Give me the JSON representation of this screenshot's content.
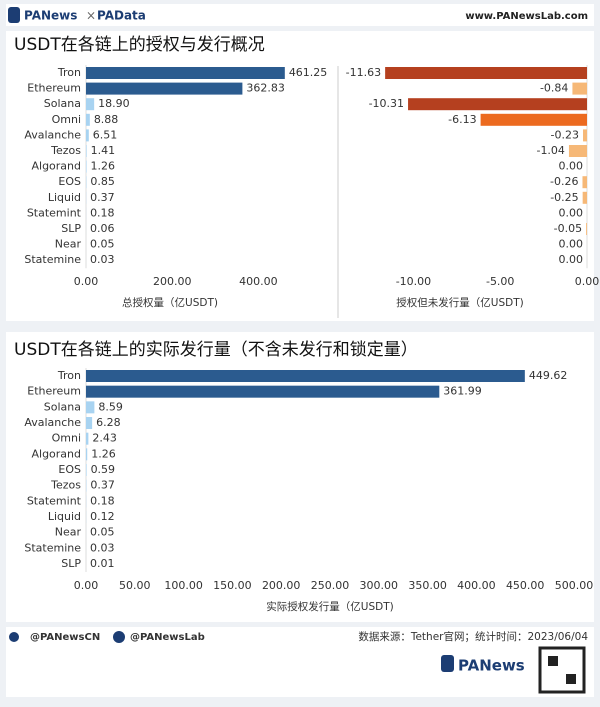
{
  "header": {
    "brand": "PANews",
    "brand2": "PAData",
    "site": "www.PANewsLab.com"
  },
  "chart_data": [
    {
      "type": "hbar",
      "title": "USDT在各链上的授权与发行概况",
      "xlabel": "总授权量（亿USDT)",
      "categories": [
        "Tron",
        "Ethereum",
        "Solana",
        "Omni",
        "Avalanche",
        "Tezos",
        "Algorand",
        "EOS",
        "Liquid",
        "Statemint",
        "SLP",
        "Near",
        "Statemine"
      ],
      "values": [
        461.25,
        362.83,
        18.9,
        8.88,
        6.51,
        1.41,
        1.26,
        0.85,
        0.37,
        0.18,
        0.06,
        0.05,
        0.03
      ],
      "value_labels": [
        "461.25",
        "362.83",
        "18.90",
        "8.88",
        "6.51",
        "1.41",
        "1.26",
        "0.85",
        "0.37",
        "0.18",
        "0.06",
        "0.05",
        "0.03"
      ],
      "colors": [
        "#2b5b8f",
        "#2b5b8f",
        "#a8d3f1",
        "#a8d3f1",
        "#a8d3f1",
        "#a8d3f1",
        "#a8d3f1",
        "#a8d3f1",
        "#a8d3f1",
        "#a8d3f1",
        "#a8d3f1",
        "#a8d3f1",
        "#a8d3f1"
      ],
      "xlim": [
        0,
        580
      ],
      "xticks": [
        {
          "value": 0,
          "label": "0.00"
        },
        {
          "value": 200,
          "label": "200.00"
        },
        {
          "value": 400,
          "label": "400.00"
        }
      ]
    },
    {
      "type": "hbar",
      "xlabel": "授权但未发行量（亿USDT)",
      "values": [
        -11.63,
        -0.84,
        -10.31,
        -6.13,
        -0.23,
        -1.04,
        0.0,
        -0.26,
        -0.25,
        0.0,
        -0.05,
        0.0,
        0.0
      ],
      "value_labels": [
        "-11.63",
        "-0.84",
        "-10.31",
        "-6.13",
        "-0.23",
        "-1.04",
        "0.00",
        "-0.26",
        "-0.25",
        "0.00",
        "-0.05",
        "0.00",
        "0.00"
      ],
      "colors": [
        "#b5401f",
        "#f6b877",
        "#b5401f",
        "#ec6a1f",
        "#f6b877",
        "#f6b877",
        "#f6b877",
        "#f6b877",
        "#f6b877",
        "#f6b877",
        "#f6b877",
        "#f6b877",
        "#f6b877"
      ],
      "xlim": [
        -14,
        0
      ],
      "xticks": [
        {
          "value": -10,
          "label": "-10.00"
        },
        {
          "value": -5,
          "label": "-5.00"
        },
        {
          "value": 0,
          "label": "0.00"
        }
      ]
    },
    {
      "type": "hbar",
      "title": "USDT在各链上的实际发行量（不含未发行和锁定量）",
      "xlabel": "实际授权发行量（亿USDT)",
      "categories": [
        "Tron",
        "Ethereum",
        "Solana",
        "Avalanche",
        "Omni",
        "Algorand",
        "EOS",
        "Tezos",
        "Statemint",
        "Liquid",
        "Near",
        "Statemine",
        "SLP"
      ],
      "values": [
        449.62,
        361.99,
        8.59,
        6.28,
        2.43,
        1.26,
        0.59,
        0.37,
        0.18,
        0.12,
        0.05,
        0.03,
        0.01
      ],
      "colors": [
        "#2b5b8f",
        "#2b5b8f",
        "#a8d3f1",
        "#a8d3f1",
        "#a8d3f1",
        "#a8d3f1",
        "#a8d3f1",
        "#a8d3f1",
        "#a8d3f1",
        "#a8d3f1",
        "#a8d3f1",
        "#a8d3f1",
        "#a8d3f1"
      ],
      "xlim": [
        0,
        500
      ],
      "xticks": [
        {
          "value": 0,
          "label": "0.00"
        },
        {
          "value": 50,
          "label": "50.00"
        },
        {
          "value": 100,
          "label": "100.00"
        },
        {
          "value": 150,
          "label": "150.00"
        },
        {
          "value": 200,
          "label": "200.00"
        },
        {
          "value": 250,
          "label": "250.00"
        },
        {
          "value": 300,
          "label": "300.00"
        },
        {
          "value": 350,
          "label": "350.00"
        },
        {
          "value": 400,
          "label": "400.00"
        },
        {
          "value": 450,
          "label": "450.00"
        },
        {
          "value": 500,
          "label": "500.00"
        }
      ]
    }
  ],
  "footer": {
    "twitter": "@PANewsCN",
    "facebook": "@PANewsLab",
    "source": "数据来源：Tether官网；统计时间：2023/06/04",
    "logo": "PANews"
  }
}
